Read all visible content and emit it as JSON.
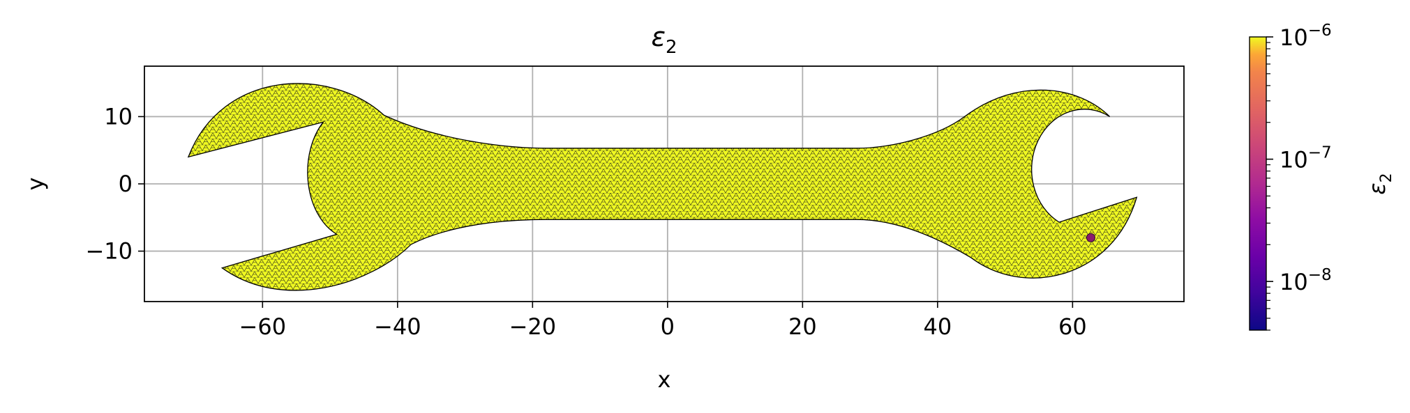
{
  "chart_data": {
    "type": "heatmap",
    "title": "ε",
    "title_sub": "2",
    "xlabel": "x",
    "ylabel": "y",
    "xlim": [
      -77.5,
      76.5
    ],
    "ylim": [
      -17.5,
      17.5
    ],
    "xticks": [
      -60,
      -40,
      -20,
      0,
      20,
      40,
      60
    ],
    "xtick_labels": [
      "−60",
      "−40",
      "−20",
      "0",
      "20",
      "40",
      "60"
    ],
    "yticks": [
      -10,
      0,
      10
    ],
    "ytick_labels": [
      "−10",
      "0",
      "10"
    ],
    "grid": true,
    "mesh": "triangular finite-element mesh of a double-ended wrench",
    "field_value_uniform": 1e-06,
    "field_anomaly": {
      "x": 62.7,
      "y": -8.0,
      "value": 3e-08
    },
    "colorbar": {
      "label": "ε",
      "label_sub": "2",
      "scale": "log",
      "colormap": "plasma",
      "range": [
        4e-09,
        1e-06
      ],
      "ticks": [
        {
          "value": 1e-06,
          "base": "10",
          "exp": "−6"
        },
        {
          "value": 1e-07,
          "base": "10",
          "exp": "−7"
        },
        {
          "value": 1e-08,
          "base": "10",
          "exp": "−8"
        }
      ]
    },
    "colors": {
      "mesh_fill": "#f0f921",
      "mesh_edge": "#1a1a1a",
      "grid": "#b0b0b0",
      "anomaly": "#8a1c6c"
    }
  }
}
